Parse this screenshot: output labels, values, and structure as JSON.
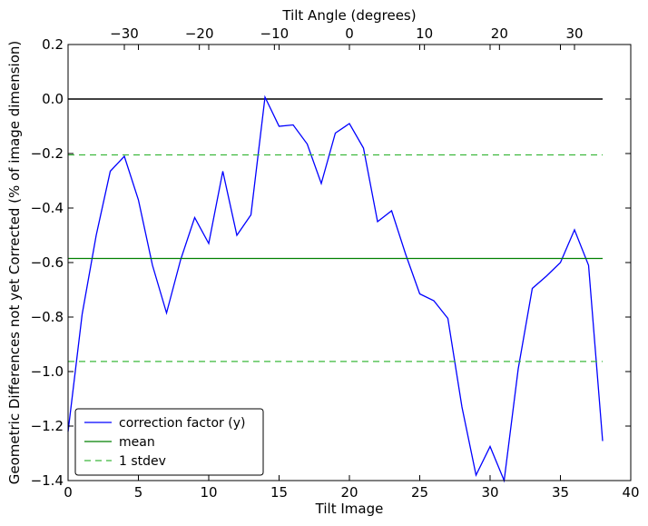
{
  "chart_data": {
    "type": "line",
    "title": "",
    "xlabel": "Tilt Image",
    "ylabel": "Geometric Differences not yet Corrected (% of image dimension)",
    "x2label": "Tilt Angle (degrees)",
    "xlim": [
      0,
      40
    ],
    "ylim": [
      -1.4,
      0.2
    ],
    "x2lim": [
      -37.5,
      37.5
    ],
    "xticks": [
      0,
      5,
      10,
      15,
      20,
      25,
      30,
      35,
      40
    ],
    "xtick_labels": [
      "0",
      "5",
      "10",
      "15",
      "20",
      "25",
      "30",
      "35",
      "40"
    ],
    "yticks": [
      0.2,
      0.0,
      -0.2,
      -0.4,
      -0.6,
      -0.8,
      -1.0,
      -1.2,
      -1.4
    ],
    "ytick_labels": [
      "0.2",
      "0.0",
      "−0.2",
      "−0.4",
      "−0.6",
      "−0.8",
      "−1.0",
      "−1.2",
      "−1.4"
    ],
    "x2ticks": [
      -30,
      -20,
      -10,
      0,
      10,
      20,
      30
    ],
    "x2tick_labels": [
      "−30",
      "−20",
      "−10",
      "0",
      "10",
      "20",
      "30"
    ],
    "legend_position": "lower-left",
    "zero_line": {
      "y": 0.0,
      "color": "#000000"
    },
    "series": [
      {
        "name": "correction factor (y)",
        "style": "solid",
        "color": "#0000ff",
        "x": [
          0,
          1,
          2,
          3,
          4,
          5,
          6,
          7,
          8,
          9,
          10,
          11,
          12,
          13,
          14,
          15,
          16,
          17,
          18,
          19,
          20,
          21,
          22,
          23,
          24,
          25,
          26,
          27,
          28,
          29,
          30,
          31,
          32,
          33,
          34,
          35,
          36,
          37,
          38
        ],
        "y": [
          -1.22,
          -0.79,
          -0.5,
          -0.265,
          -0.21,
          -0.37,
          -0.61,
          -0.785,
          -0.59,
          -0.435,
          -0.53,
          -0.265,
          -0.5,
          -0.425,
          0.007,
          -0.1,
          -0.095,
          -0.165,
          -0.31,
          -0.125,
          -0.09,
          -0.18,
          -0.45,
          -0.41,
          -0.57,
          -0.715,
          -0.74,
          -0.805,
          -1.13,
          -1.38,
          -1.275,
          -1.4,
          -0.99,
          -0.695,
          -0.65,
          -0.6,
          -0.48,
          -0.61,
          -1.255
        ]
      },
      {
        "name": "mean",
        "style": "solid",
        "color": "#008000",
        "x": [
          0,
          38
        ],
        "y": [
          -0.585,
          -0.585
        ]
      },
      {
        "name": "1 stdev",
        "style": "dashed",
        "color": "#3cb83c",
        "x": [
          0,
          38
        ],
        "y": [
          -0.205,
          -0.205
        ]
      },
      {
        "name": "",
        "style": "dashed",
        "color": "#3cb83c",
        "x": [
          0,
          38
        ],
        "y": [
          -0.963,
          -0.963
        ]
      }
    ]
  }
}
